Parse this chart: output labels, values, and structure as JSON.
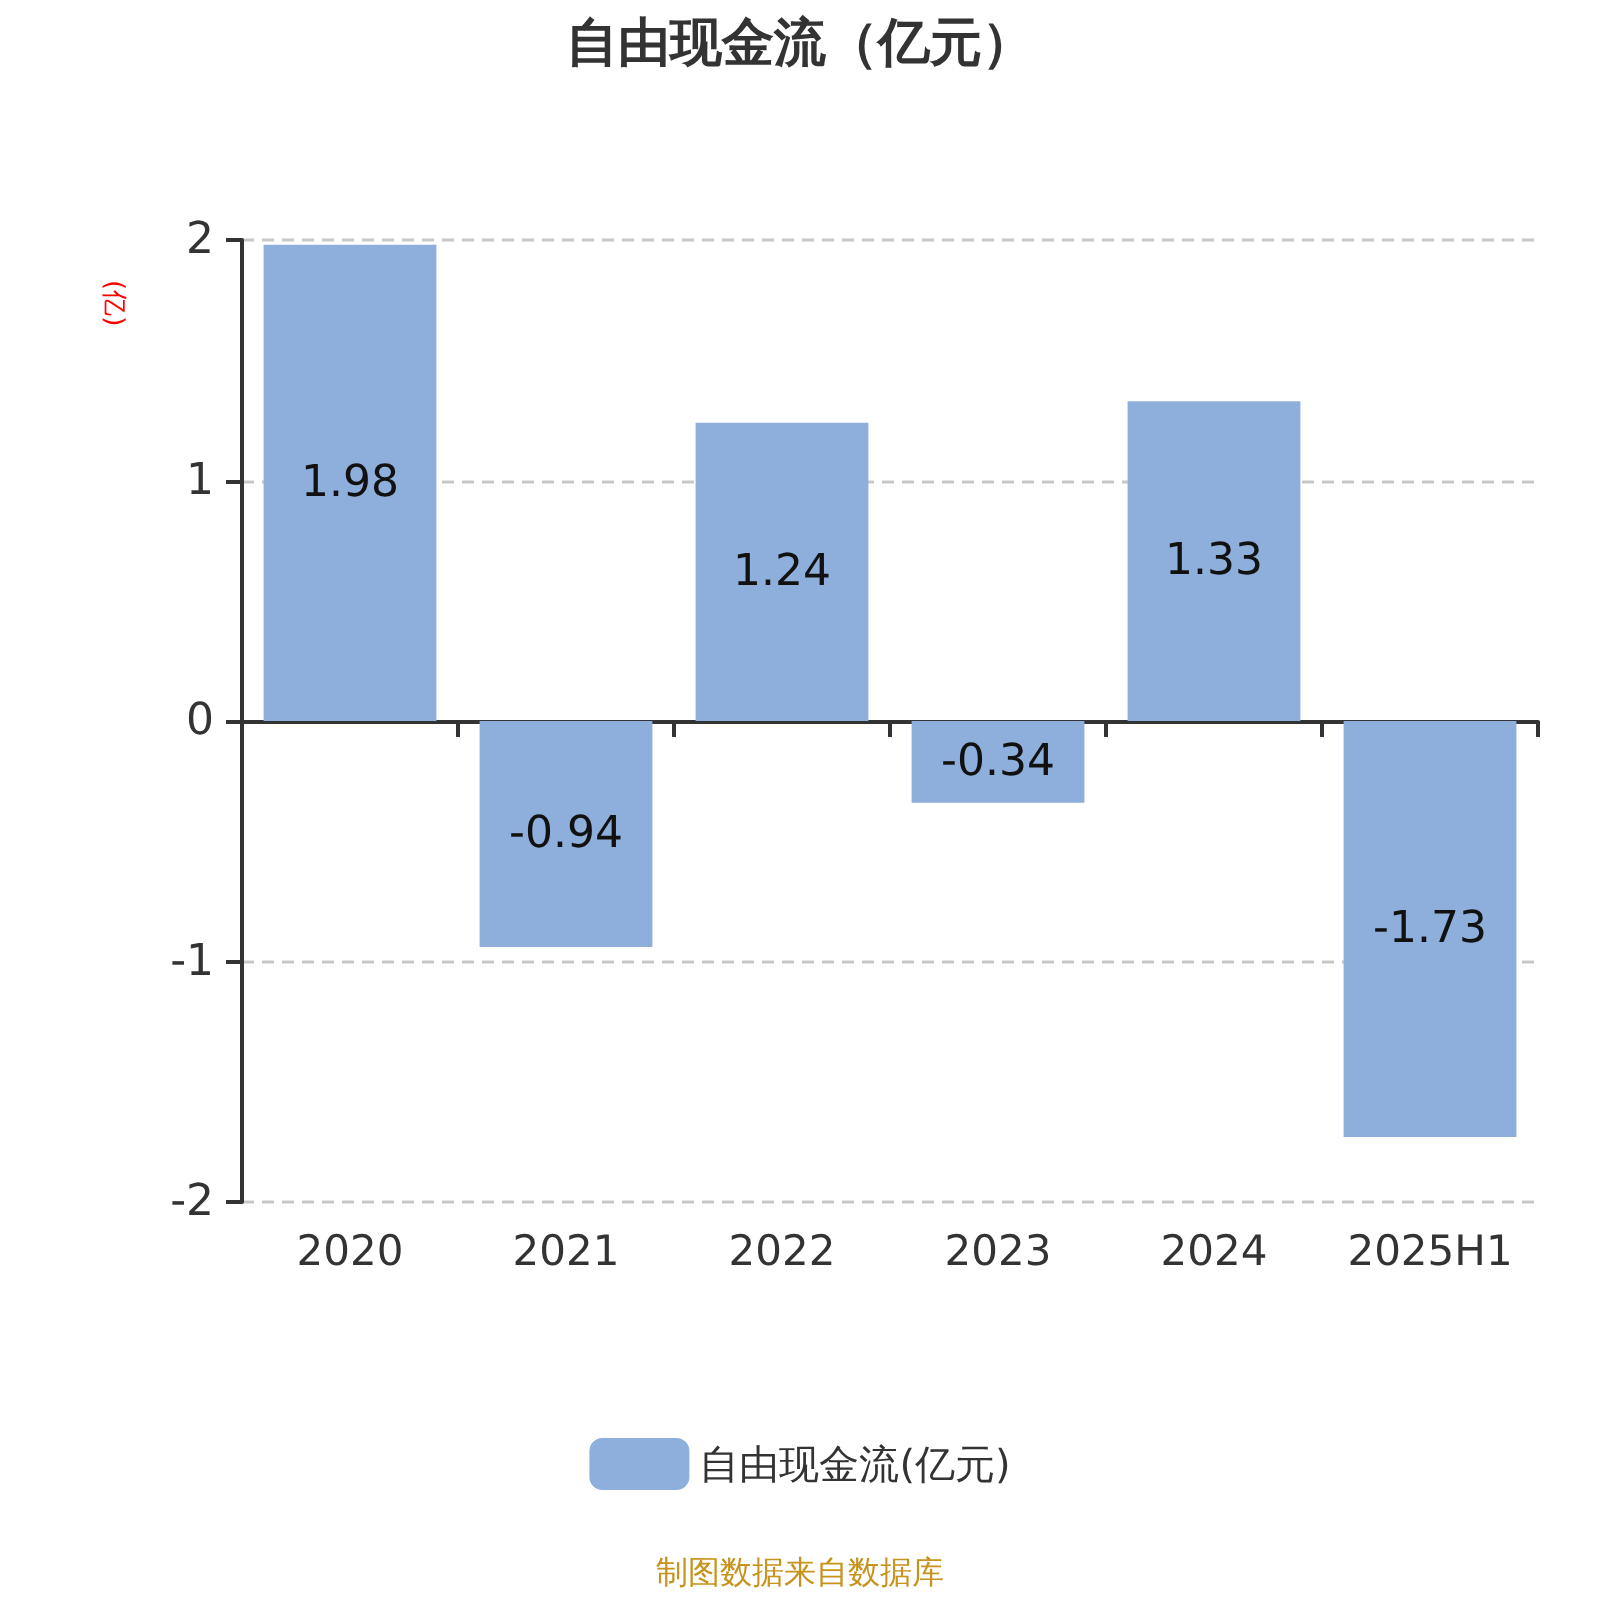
{
  "chart_data": {
    "type": "bar",
    "title": "自由现金流（亿元）",
    "ylabel": "(亿)",
    "categories": [
      "2020",
      "2021",
      "2022",
      "2023",
      "2024",
      "2025H1"
    ],
    "series": [
      {
        "name": "自由现金流(亿元)",
        "color": "#8eaedb",
        "values": [
          1.98,
          -0.94,
          1.24,
          -0.34,
          1.33,
          -1.73
        ]
      }
    ],
    "ylim": [
      -2,
      2
    ],
    "yticks": [
      -2,
      -1,
      0,
      1,
      2
    ],
    "grid": "y",
    "legend": "bottom",
    "data_labels": true,
    "annotations": [
      "制图数据来自数据库"
    ]
  }
}
